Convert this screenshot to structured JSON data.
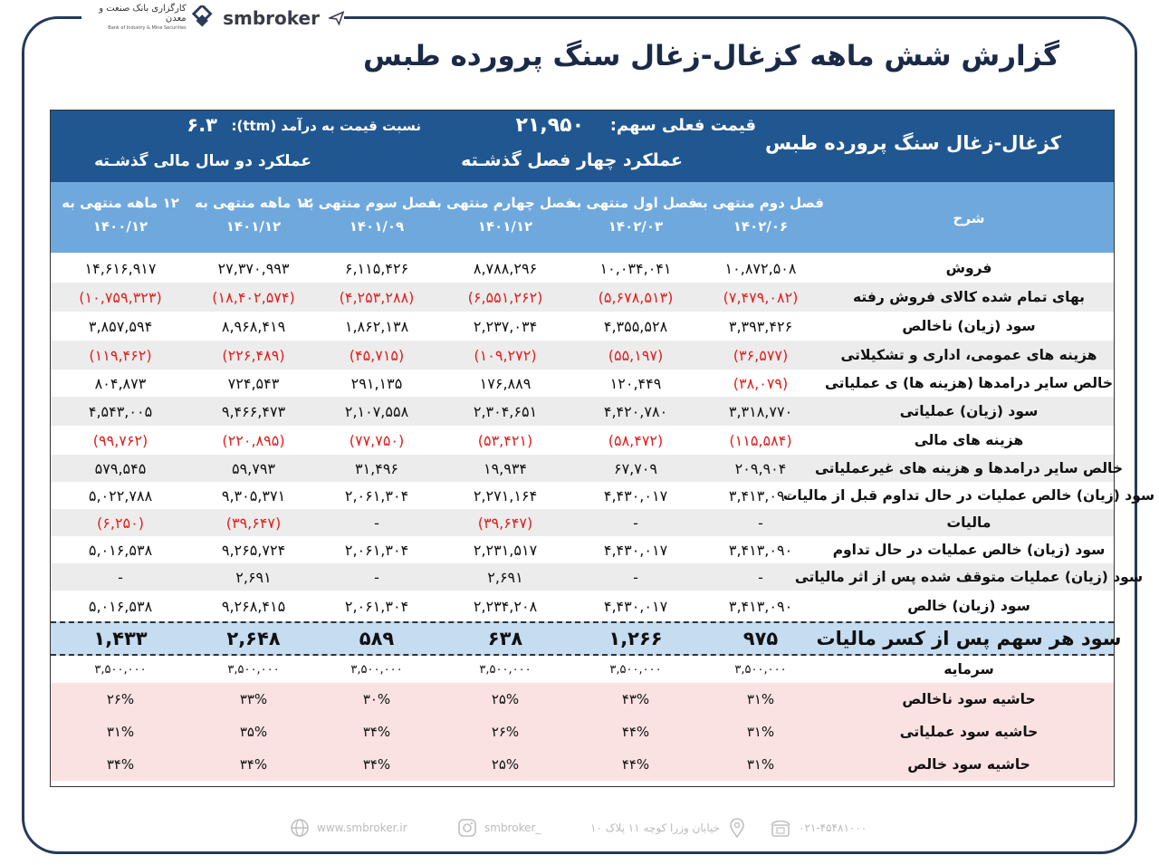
{
  "brand": {
    "name": "smbroker",
    "bank_name_fa": "کارگزاری بانک صنعت و معدن",
    "bank_name_en": "Bank of Industry & Mine Securities"
  },
  "title": "گزارش شش ماهه کزغال-زغال سنگ پرورده طبس",
  "header": {
    "company": "کزغال-زغال سنگ پرورده طبس",
    "price_label": "قیمت فعلی سهم:",
    "price_value": "۲۱,۹۵۰",
    "pe_label": "نسبت  قیمت به درآمد (ttm):",
    "pe_value": "۶.۳",
    "four_q_label": "عملکرد چهار فصل گذشـته",
    "two_y_label": "عملکرد دو سال مالی گذشـته"
  },
  "columns": {
    "desc": "شرح",
    "periods": [
      "فصل دوم منتهی به\n۱۴۰۲/۰۶",
      "فصل اول منتهی به\n۱۴۰۲/۰۳",
      "فصل چهارم منتهی به\n۱۴۰۱/۱۲",
      "فصل سوم منتهی به\n۱۴۰۱/۰۹",
      "۱۲ ماهه منتهی به\n۱۴۰۱/۱۲",
      "۱۲ ماهه منتهی به\n۱۴۰۰/۱۲"
    ]
  },
  "rows": [
    {
      "label": "فروش",
      "values": [
        "۱۰,۸۷۲,۵۰۸",
        "۱۰,۰۳۴,۰۴۱",
        "۸,۷۸۸,۲۹۶",
        "۶,۱۱۵,۴۲۶",
        "۲۷,۳۷۰,۹۹۳",
        "۱۴,۶۱۶,۹۱۷"
      ]
    },
    {
      "label": "بهای تمام شده کالای فروش رفته",
      "values": [
        "(۷,۴۷۹,۰۸۲)",
        "(۵,۶۷۸,۵۱۳)",
        "(۶,۵۵۱,۲۶۲)",
        "(۴,۲۵۳,۲۸۸)",
        "(۱۸,۴۰۲,۵۷۴)",
        "(۱۰,۷۵۹,۳۲۳)"
      ]
    },
    {
      "label": "سود (زیان) ناخالص",
      "values": [
        "۳,۳۹۳,۴۲۶",
        "۴,۳۵۵,۵۲۸",
        "۲,۲۳۷,۰۳۴",
        "۱,۸۶۲,۱۳۸",
        "۸,۹۶۸,۴۱۹",
        "۳,۸۵۷,۵۹۴"
      ]
    },
    {
      "label": "هزینه های عمومی، اداری و تشکیلاتی",
      "values": [
        "(۳۶,۵۷۷)",
        "(۵۵,۱۹۷)",
        "(۱۰۹,۲۷۲)",
        "(۴۵,۷۱۵)",
        "(۲۲۶,۴۸۹)",
        "(۱۱۹,۴۶۲)"
      ]
    },
    {
      "label": "خالص سایر درامدها (هزینه ها) ی عملیاتی",
      "values": [
        "(۳۸,۰۷۹)",
        "۱۲۰,۴۴۹",
        "۱۷۶,۸۸۹",
        "۲۹۱,۱۳۵",
        "۷۲۴,۵۴۳",
        "۸۰۴,۸۷۳"
      ]
    },
    {
      "label": "سود (زیان) عملیاتی",
      "values": [
        "۳,۳۱۸,۷۷۰",
        "۴,۴۲۰,۷۸۰",
        "۲,۳۰۴,۶۵۱",
        "۲,۱۰۷,۵۵۸",
        "۹,۴۶۶,۴۷۳",
        "۴,۵۴۳,۰۰۵"
      ]
    },
    {
      "label": "هزینه های مالی",
      "values": [
        "(۱۱۵,۵۸۴)",
        "(۵۸,۴۷۲)",
        "(۵۳,۴۲۱)",
        "(۷۷,۷۵۰)",
        "(۲۲۰,۸۹۵)",
        "(۹۹,۷۶۲)"
      ]
    },
    {
      "label": "خالص سایر درامدها و هزینه های غیرعملیاتی",
      "values": [
        "۲۰۹,۹۰۴",
        "۶۷,۷۰۹",
        "۱۹,۹۳۴",
        "۳۱,۴۹۶",
        "۵۹,۷۹۳",
        "۵۷۹,۵۴۵"
      ]
    },
    {
      "label": "سود (زیان) خالص عملیات در حال تداوم قبل از مالیات",
      "values": [
        "۳,۴۱۳,۰۹۰",
        "۴,۴۳۰,۰۱۷",
        "۲,۲۷۱,۱۶۴",
        "۲,۰۶۱,۳۰۴",
        "۹,۳۰۵,۳۷۱",
        "۵,۰۲۲,۷۸۸"
      ]
    },
    {
      "label": "مالیات",
      "values": [
        "-",
        "-",
        "(۳۹,۶۴۷)",
        "-",
        "(۳۹,۶۴۷)",
        "(۶,۲۵۰)"
      ]
    },
    {
      "label": "سود (زیان) خالص عملیات در حال تداوم",
      "values": [
        "۳,۴۱۳,۰۹۰",
        "۴,۴۳۰,۰۱۷",
        "۲,۲۳۱,۵۱۷",
        "۲,۰۶۱,۳۰۴",
        "۹,۲۶۵,۷۲۴",
        "۵,۰۱۶,۵۳۸"
      ]
    },
    {
      "label": "سود (زیان) عملیات متوقف شده پس از اثر مالیاتی",
      "values": [
        "-",
        "-",
        "۲,۶۹۱",
        "-",
        "۲,۶۹۱",
        "-"
      ]
    },
    {
      "label": "سود (زیان) خالص",
      "values": [
        "۳,۴۱۳,۰۹۰",
        "۴,۴۳۰,۰۱۷",
        "۲,۲۳۴,۲۰۸",
        "۲,۰۶۱,۳۰۴",
        "۹,۲۶۸,۴۱۵",
        "۵,۰۱۶,۵۳۸"
      ]
    }
  ],
  "eps": {
    "label": "سود هر سهم پس از کسر مالیات",
    "values": [
      "۹۷۵",
      "۱,۲۶۶",
      "۶۳۸",
      "۵۸۹",
      "۲,۶۴۸",
      "۱,۴۳۳"
    ]
  },
  "capital": {
    "label": "سرمایه",
    "values": [
      "۳,۵۰۰,۰۰۰",
      "۳,۵۰۰,۰۰۰",
      "۳,۵۰۰,۰۰۰",
      "۳,۵۰۰,۰۰۰",
      "۳,۵۰۰,۰۰۰",
      "۳,۵۰۰,۰۰۰"
    ]
  },
  "margins": [
    {
      "label": "حاشیه سود ناخالص",
      "values": [
        "۳۱%",
        "۴۳%",
        "۲۵%",
        "۳۰%",
        "۳۳%",
        "۲۶%"
      ]
    },
    {
      "label": "حاشیه سود عملیاتی",
      "values": [
        "۳۱%",
        "۴۴%",
        "۲۶%",
        "۳۴%",
        "۳۵%",
        "۳۱%"
      ]
    },
    {
      "label": "حاشیه سود خالص",
      "values": [
        "۳۱%",
        "۴۴%",
        "۲۵%",
        "۳۴%",
        "۳۴%",
        "۳۴%"
      ]
    }
  ],
  "footer": {
    "website": "www.smbroker.ir",
    "instagram": "smbroker_",
    "address": "خیابان وزرا کوچه ۱۱ پلاک ۱۰",
    "phone": "۰۲۱-۴۵۴۸۱۰۰۰"
  },
  "colors": {
    "dark_blue": "#205791",
    "light_blue": "#6fa8dc",
    "eps_bg": "#c5dcf1",
    "margin_bg": "#fbe2e2",
    "negative": "#e02020"
  }
}
